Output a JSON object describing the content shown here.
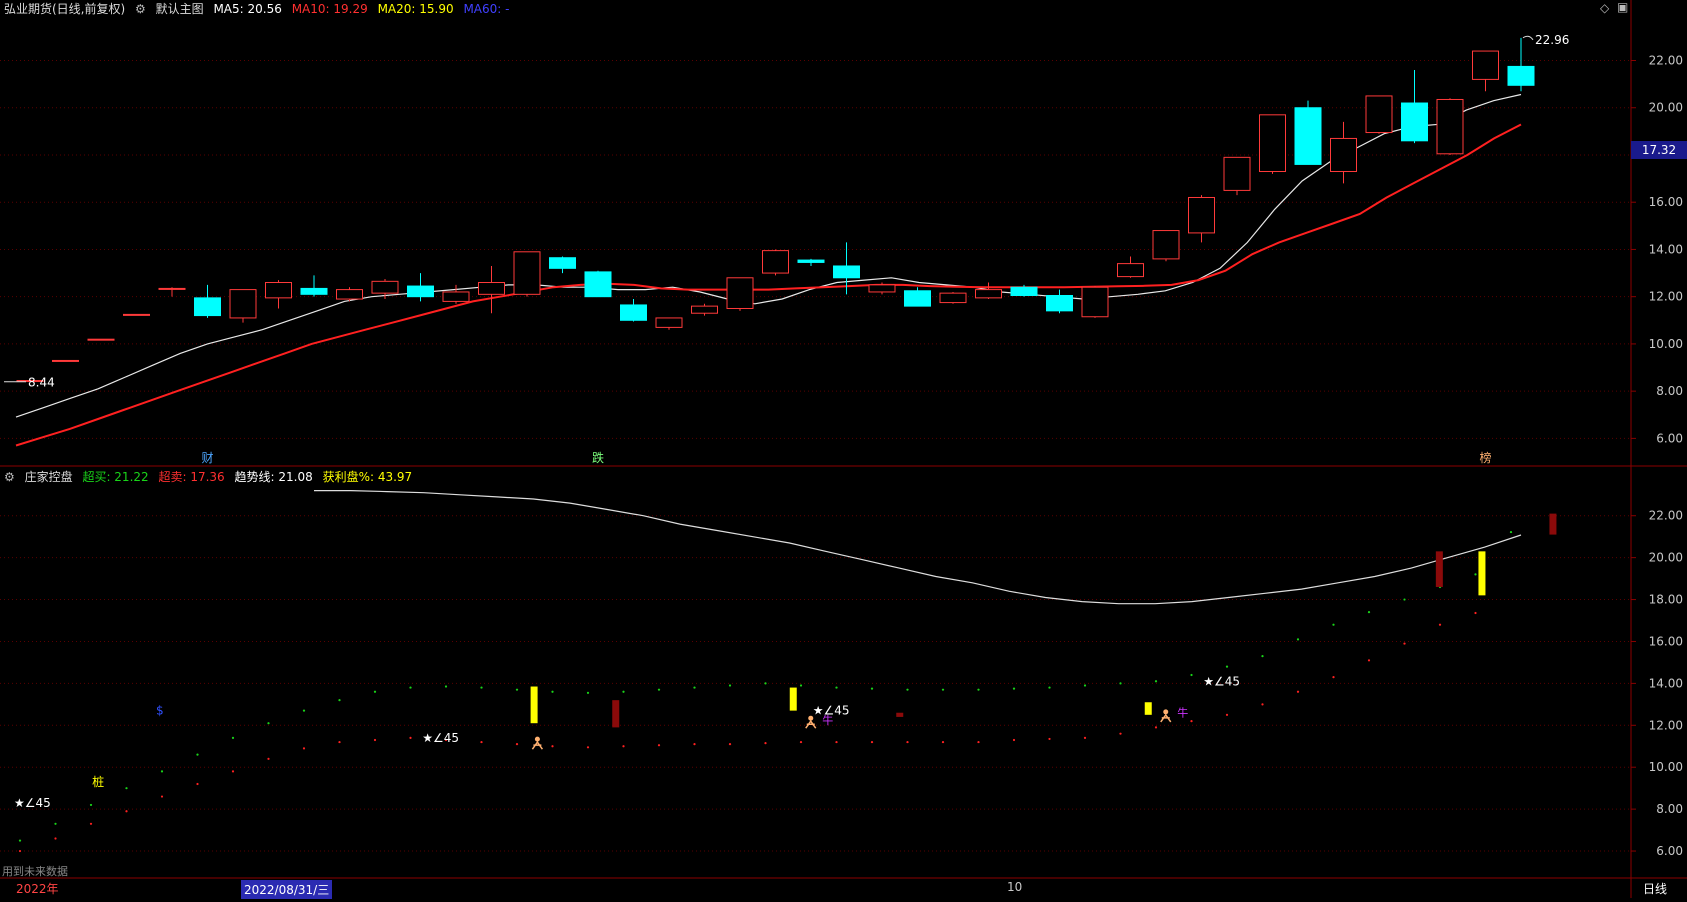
{
  "main_panel": {
    "title": "弘业期货(日线,前复权)",
    "chart_label": "默认主图",
    "ma_labels": [
      {
        "text": "MA5: 20.56",
        "color": "#ffffff"
      },
      {
        "text": "MA10: 19.29",
        "color": "#ff3030"
      },
      {
        "text": "MA20: 15.90",
        "color": "#ffff00"
      },
      {
        "text": "MA60: -",
        "color": "#4040ff"
      }
    ],
    "current_price": "17.32",
    "high_label": "22.96",
    "low_label": "8.44",
    "markers": [
      {
        "text": "财",
        "color": "#4da6ff",
        "x_index": 5
      },
      {
        "text": "跌",
        "color": "#7cff7c",
        "x_index": 16
      },
      {
        "text": "榜",
        "color": "#ffb070",
        "x_index": 41
      }
    ]
  },
  "sub_panel": {
    "title": "庄家控盘",
    "labels": [
      {
        "text": "超买: 21.22",
        "color": "#19d419"
      },
      {
        "text": "超卖: 17.36",
        "color": "#ff3030"
      },
      {
        "text": "趋势线: 21.08",
        "color": "#ffffff"
      },
      {
        "text": "获利盘%: 43.97",
        "color": "#ffff00"
      }
    ],
    "note": "用到未来数据",
    "annotations": [
      {
        "text": "★∠45",
        "color": "#ffffff",
        "x_index": 0,
        "y": 8.3
      },
      {
        "text": "★∠45",
        "color": "#ffffff",
        "x_index": 11.5,
        "y": 11.4
      },
      {
        "text": "★∠45",
        "color": "#ffffff",
        "x_index": 22.5,
        "y": 12.7
      },
      {
        "text": "★∠45",
        "color": "#ffffff",
        "x_index": 33.5,
        "y": 14.1
      },
      {
        "text": "桩",
        "color": "#ffff00",
        "x_index": 2.2,
        "y": 9.3
      },
      {
        "text": "$",
        "color": "#3050ff",
        "x_index": 4,
        "y": 12.7
      }
    ]
  },
  "footer": {
    "year": "2022年",
    "date": "2022/08/31/三",
    "month": "10",
    "period": "日线"
  },
  "chart_data": [
    {
      "type": "candlestick",
      "title": "弘业期货(日线,前复权)",
      "y_ticks": [
        "6.00",
        "8.00",
        "10.00",
        "12.00",
        "14.00",
        "16.00",
        "18.00",
        "20.00",
        "22.00"
      ],
      "ylim": [
        5.0,
        23.8
      ],
      "candles": [
        {
          "o": 8.45,
          "h": 8.5,
          "l": 8.4,
          "c": 8.45,
          "up": true
        },
        {
          "o": 9.3,
          "h": 9.3,
          "l": 9.3,
          "c": 9.3,
          "up": true
        },
        {
          "o": 10.2,
          "h": 10.2,
          "l": 10.2,
          "c": 10.2,
          "up": true
        },
        {
          "o": 11.25,
          "h": 11.25,
          "l": 11.25,
          "c": 11.25,
          "up": true
        },
        {
          "o": 12.35,
          "h": 12.4,
          "l": 12.0,
          "c": 12.35,
          "up": true
        },
        {
          "o": 11.95,
          "h": 12.5,
          "l": 11.1,
          "c": 11.2,
          "up": false
        },
        {
          "o": 11.1,
          "h": 12.3,
          "l": 10.9,
          "c": 12.3,
          "up": true
        },
        {
          "o": 11.95,
          "h": 12.7,
          "l": 11.5,
          "c": 12.6,
          "up": true
        },
        {
          "o": 12.35,
          "h": 12.9,
          "l": 12.0,
          "c": 12.1,
          "up": false
        },
        {
          "o": 11.9,
          "h": 12.4,
          "l": 11.8,
          "c": 12.3,
          "up": true
        },
        {
          "o": 12.15,
          "h": 12.75,
          "l": 11.9,
          "c": 12.65,
          "up": true
        },
        {
          "o": 12.45,
          "h": 13.0,
          "l": 11.8,
          "c": 12.0,
          "up": false
        },
        {
          "o": 11.8,
          "h": 12.5,
          "l": 11.7,
          "c": 12.2,
          "up": true
        },
        {
          "o": 12.1,
          "h": 13.3,
          "l": 11.3,
          "c": 12.6,
          "up": true
        },
        {
          "o": 12.1,
          "h": 13.9,
          "l": 12.0,
          "c": 13.9,
          "up": true
        },
        {
          "o": 13.65,
          "h": 13.7,
          "l": 13.0,
          "c": 13.2,
          "up": false
        },
        {
          "o": 13.05,
          "h": 13.1,
          "l": 12.0,
          "c": 12.0,
          "up": false
        },
        {
          "o": 11.65,
          "h": 11.9,
          "l": 10.95,
          "c": 11.0,
          "up": false
        },
        {
          "o": 10.7,
          "h": 11.1,
          "l": 10.6,
          "c": 11.1,
          "up": true
        },
        {
          "o": 11.3,
          "h": 11.7,
          "l": 11.2,
          "c": 11.6,
          "up": true
        },
        {
          "o": 11.5,
          "h": 12.8,
          "l": 11.4,
          "c": 12.8,
          "up": true
        },
        {
          "o": 13.0,
          "h": 14.0,
          "l": 12.9,
          "c": 13.95,
          "up": true
        },
        {
          "o": 13.55,
          "h": 13.6,
          "l": 13.3,
          "c": 13.45,
          "up": false
        },
        {
          "o": 13.3,
          "h": 14.3,
          "l": 12.1,
          "c": 12.8,
          "up": false
        },
        {
          "o": 12.2,
          "h": 12.6,
          "l": 12.1,
          "c": 12.5,
          "up": true
        },
        {
          "o": 12.25,
          "h": 12.4,
          "l": 11.6,
          "c": 11.6,
          "up": false
        },
        {
          "o": 11.75,
          "h": 12.2,
          "l": 11.7,
          "c": 12.15,
          "up": true
        },
        {
          "o": 11.95,
          "h": 12.6,
          "l": 11.9,
          "c": 12.3,
          "up": true
        },
        {
          "o": 12.4,
          "h": 12.5,
          "l": 12.0,
          "c": 12.05,
          "up": false
        },
        {
          "o": 12.05,
          "h": 12.3,
          "l": 11.3,
          "c": 11.4,
          "up": false
        },
        {
          "o": 11.15,
          "h": 12.45,
          "l": 11.1,
          "c": 12.4,
          "up": true
        },
        {
          "o": 12.85,
          "h": 13.7,
          "l": 12.8,
          "c": 13.4,
          "up": true
        },
        {
          "o": 13.6,
          "h": 14.8,
          "l": 13.5,
          "c": 14.8,
          "up": true
        },
        {
          "o": 14.7,
          "h": 16.3,
          "l": 14.3,
          "c": 16.2,
          "up": true
        },
        {
          "o": 16.5,
          "h": 17.9,
          "l": 16.3,
          "c": 17.9,
          "up": true
        },
        {
          "o": 17.3,
          "h": 19.7,
          "l": 17.2,
          "c": 19.7,
          "up": true
        },
        {
          "o": 20.0,
          "h": 20.3,
          "l": 17.6,
          "c": 17.6,
          "up": false
        },
        {
          "o": 17.3,
          "h": 19.4,
          "l": 16.8,
          "c": 18.7,
          "up": true
        },
        {
          "o": 18.95,
          "h": 20.5,
          "l": 18.9,
          "c": 20.5,
          "up": true
        },
        {
          "o": 20.2,
          "h": 21.6,
          "l": 18.5,
          "c": 18.6,
          "up": false
        },
        {
          "o": 18.05,
          "h": 20.4,
          "l": 18.0,
          "c": 20.35,
          "up": true
        },
        {
          "o": 21.2,
          "h": 22.4,
          "l": 20.7,
          "c": 22.4,
          "up": true
        },
        {
          "o": 21.75,
          "h": 22.96,
          "l": 20.7,
          "c": 20.95,
          "up": false
        }
      ],
      "series": [
        {
          "name": "MA5",
          "color": "#e8e8e8",
          "width": 1.2,
          "values": [
            6.9,
            7.3,
            7.7,
            8.1,
            8.6,
            9.1,
            9.6,
            10.0,
            10.3,
            10.6,
            11.0,
            11.4,
            11.8,
            12.0,
            12.1,
            12.2,
            12.3,
            12.4,
            12.5,
            12.5,
            12.4,
            12.4,
            12.3,
            12.3,
            12.4,
            12.2,
            11.9,
            11.7,
            11.9,
            12.3,
            12.6,
            12.7,
            12.8,
            12.6,
            12.5,
            12.4,
            12.2,
            12.1,
            12.0,
            11.9,
            12.0,
            12.1,
            12.25,
            12.6,
            13.2,
            14.3,
            15.7,
            16.9,
            17.7,
            18.3,
            18.9,
            19.2,
            19.3,
            19.9,
            20.3,
            20.56
          ]
        },
        {
          "name": "MA10",
          "color": "#ff2020",
          "width": 2.0,
          "values": [
            5.7,
            6.05,
            6.4,
            6.8,
            7.2,
            7.6,
            8.0,
            8.4,
            8.8,
            9.2,
            9.6,
            10.0,
            10.3,
            10.6,
            10.9,
            11.2,
            11.5,
            11.8,
            12.0,
            12.2,
            12.4,
            12.5,
            12.55,
            12.5,
            12.35,
            12.3,
            12.3,
            12.3,
            12.3,
            12.35,
            12.4,
            12.45,
            12.5,
            12.5,
            12.45,
            12.42,
            12.4,
            12.4,
            12.4,
            12.4,
            12.42,
            12.44,
            12.46,
            12.5,
            12.7,
            13.1,
            13.8,
            14.3,
            14.7,
            15.1,
            15.5,
            16.2,
            16.8,
            17.4,
            18.0,
            18.7,
            19.29
          ]
        }
      ]
    },
    {
      "type": "indicator",
      "title": "庄家控盘",
      "y_ticks": [
        "6.00",
        "8.00",
        "10.00",
        "12.00",
        "14.00",
        "16.00",
        "18.00",
        "20.00",
        "22.00"
      ],
      "ylim": [
        5.0,
        23.8
      ],
      "trend_line": [
        23.2,
        23.2,
        23.15,
        23.1,
        23.0,
        22.9,
        22.8,
        22.6,
        22.3,
        22.0,
        21.6,
        21.3,
        21.0,
        20.7,
        20.3,
        19.9,
        19.5,
        19.1,
        18.8,
        18.4,
        18.1,
        17.9,
        17.8,
        17.8,
        17.9,
        18.1,
        18.3,
        18.5,
        18.8,
        19.1,
        19.5,
        20.0,
        20.5,
        21.08
      ],
      "trend_start_index": 8,
      "green_dots": [
        6.5,
        7.3,
        8.2,
        9.0,
        9.8,
        10.6,
        11.4,
        12.1,
        12.7,
        13.2,
        13.6,
        13.8,
        13.85,
        13.8,
        13.7,
        13.6,
        13.55,
        13.6,
        13.7,
        13.8,
        13.9,
        14.0,
        13.9,
        13.8,
        13.75,
        13.7,
        13.7,
        13.7,
        13.75,
        13.8,
        13.9,
        14.0,
        14.1,
        14.4,
        14.8,
        15.3,
        16.1,
        16.8,
        17.4,
        18.0,
        18.6,
        19.2,
        21.22
      ],
      "red_dots": [
        6.0,
        6.6,
        7.3,
        7.9,
        8.6,
        9.2,
        9.8,
        10.4,
        10.9,
        11.2,
        11.3,
        11.4,
        11.3,
        11.2,
        11.1,
        11.0,
        10.95,
        11.0,
        11.05,
        11.1,
        11.1,
        11.15,
        11.2,
        11.2,
        11.2,
        11.2,
        11.2,
        11.2,
        11.3,
        11.35,
        11.4,
        11.6,
        11.9,
        12.2,
        12.5,
        13.0,
        13.6,
        14.3,
        15.1,
        15.9,
        16.8,
        17.36
      ],
      "yellow_bars": [
        {
          "x_index": 14.2,
          "low": 12.1,
          "high": 13.85
        },
        {
          "x_index": 21.5,
          "low": 12.7,
          "high": 13.8
        },
        {
          "x_index": 31.5,
          "low": 12.5,
          "high": 13.1
        },
        {
          "x_index": 40.9,
          "low": 18.2,
          "high": 20.3
        }
      ],
      "darkred_bars": [
        {
          "x_index": 16.5,
          "low": 11.9,
          "high": 13.2
        },
        {
          "x_index": 24.5,
          "low": 12.4,
          "high": 12.6
        },
        {
          "x_index": 39.7,
          "low": 18.6,
          "high": 20.3
        },
        {
          "x_index": 42.9,
          "low": 21.1,
          "high": 22.1
        }
      ]
    }
  ]
}
